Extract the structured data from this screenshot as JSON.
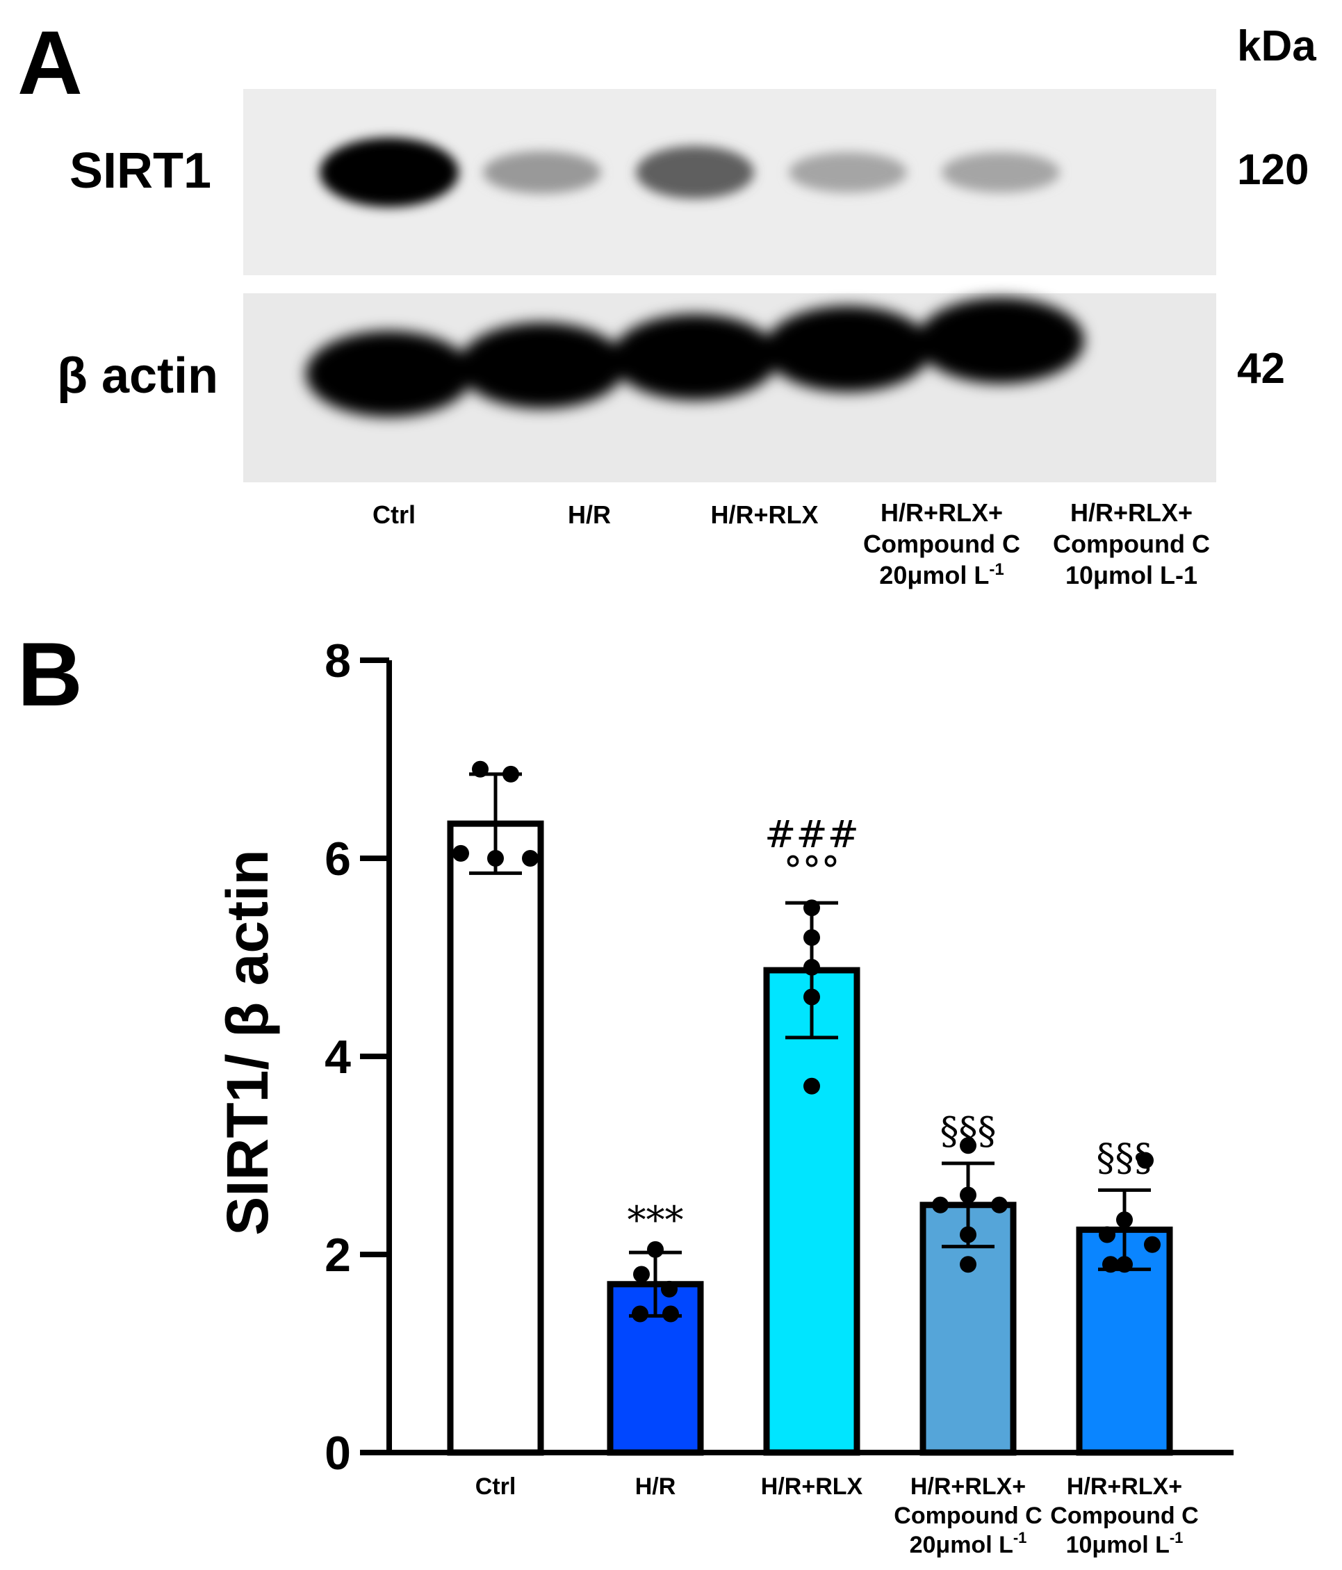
{
  "panel_a": {
    "letter": "A",
    "kda_label": "kDa",
    "rows": [
      {
        "label": "SIRT1",
        "kda": "120",
        "band_intensity": [
          1.0,
          0.35,
          0.6,
          0.3,
          0.3
        ]
      },
      {
        "label": "β actin",
        "kda": "42",
        "band_intensity": [
          1.0,
          1.0,
          1.0,
          1.0,
          1.0
        ]
      }
    ],
    "lanes": [
      {
        "line1": "Ctrl",
        "line2": "",
        "line3_main": "",
        "line3_sup": ""
      },
      {
        "line1": "H/R",
        "line2": "",
        "line3_main": "",
        "line3_sup": ""
      },
      {
        "line1": "H/R+RLX",
        "line2": "",
        "line3_main": "",
        "line3_sup": ""
      },
      {
        "line1": "H/R+RLX+",
        "line2": "Compound C",
        "line3_main": "20μmol L",
        "line3_sup": "-1"
      },
      {
        "line1": "H/R+RLX+",
        "line2": "Compound C",
        "line3_main": "10μmol L-1",
        "line3_sup": ""
      }
    ]
  },
  "panel_b": {
    "letter": "B"
  },
  "chart_data": {
    "type": "bar",
    "ylabel": "SIRT1/ β actin",
    "xlabel": "",
    "ylim": [
      0,
      8
    ],
    "yticks": [
      "0",
      "2",
      "4",
      "6",
      "8"
    ],
    "categories": [
      {
        "line1": "Ctrl",
        "line2": "",
        "line3_main": "",
        "line3_sup": ""
      },
      {
        "line1": "H/R",
        "line2": "",
        "line3_main": "",
        "line3_sup": ""
      },
      {
        "line1": "H/R+RLX",
        "line2": "",
        "line3_main": "",
        "line3_sup": ""
      },
      {
        "line1": "H/R+RLX+",
        "line2": "Compound C",
        "line3_main": "20μmol L",
        "line3_sup": "-1"
      },
      {
        "line1": "H/R+RLX+",
        "line2": "Compound C",
        "line3_main": "10μmol L",
        "line3_sup": "-1"
      }
    ],
    "values": [
      6.35,
      1.7,
      4.87,
      2.5,
      2.25
    ],
    "errors": [
      0.5,
      0.32,
      0.68,
      0.42,
      0.4
    ],
    "points": [
      [
        6.9,
        6.85,
        6.05,
        6.0,
        6.0
      ],
      [
        2.05,
        1.8,
        1.65,
        1.4,
        1.4
      ],
      [
        5.5,
        5.2,
        4.9,
        4.6,
        3.7
      ],
      [
        3.1,
        2.6,
        2.5,
        2.5,
        2.2,
        1.9
      ],
      [
        2.95,
        2.35,
        2.2,
        2.1,
        1.9,
        1.9
      ]
    ],
    "colors": [
      "#ffffff",
      "#0047ff",
      "#00e5ff",
      "#55a5d9",
      "#0a85ff"
    ],
    "annotations": [
      {
        "bar": 1,
        "lines": [
          "***"
        ]
      },
      {
        "bar": 2,
        "lines": [
          "###",
          "°°°"
        ]
      },
      {
        "bar": 3,
        "lines": [
          "§§§"
        ]
      },
      {
        "bar": 4,
        "lines": [
          "§§§"
        ]
      }
    ],
    "grid": false,
    "legend": "none"
  }
}
